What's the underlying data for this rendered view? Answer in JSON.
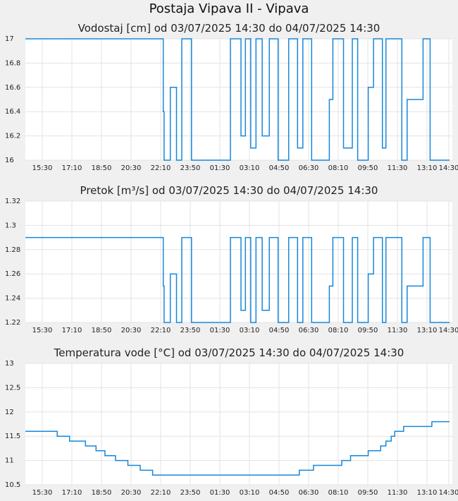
{
  "title": "Postaja Vipava II - Vipava",
  "colors": {
    "line": "#1787d9",
    "plot_background": "#ffffff",
    "page_background": "#f0f0f0",
    "grid": "#e3e3e3"
  },
  "chart_data": [
    {
      "type": "line",
      "title": "Vodostaj [cm] od 03/07/2025 14:30 do 04/07/2025 14:30",
      "xticks": [
        "15:30",
        "17:10",
        "18:50",
        "20:30",
        "22:10",
        "23:50",
        "01:30",
        "03:10",
        "04:50",
        "06:30",
        "08:10",
        "09:50",
        "11:30",
        "13:10",
        "14:30"
      ],
      "yticks": [
        "16",
        "16.2",
        "16.4",
        "16.6",
        "16.8",
        "17"
      ],
      "ylim": [
        16,
        17
      ],
      "grid": true,
      "series": [
        {
          "step": true,
          "x": [
            0,
            7.7,
            7.8,
            7.85,
            8.15,
            8.2,
            8.5,
            8.55,
            8.75,
            8.85,
            9.3,
            9.4,
            11.4,
            11.6,
            12.1,
            12.2,
            12.35,
            12.45,
            12.65,
            12.75,
            12.95,
            13.05,
            13.3,
            13.4,
            13.7,
            13.8,
            14.2,
            14.3,
            14.8,
            14.9,
            15.3,
            15.4,
            15.6,
            15.7,
            16.1,
            16.2,
            17.1,
            17.2,
            17.3,
            17.4,
            17.9,
            18.0,
            18.4,
            18.5,
            18.7,
            18.8,
            19.3,
            19.4,
            19.6,
            19.7,
            20.1,
            20.2,
            20.3,
            20.4,
            21.2,
            21.3,
            21.5,
            21.6,
            22.4,
            22.5,
            22.8,
            22.9,
            24
          ],
          "y": [
            17,
            17,
            16.4,
            16,
            16,
            16.6,
            16.6,
            16,
            16,
            17,
            17,
            16,
            16,
            17,
            17,
            16.2,
            16.2,
            17,
            17,
            16.1,
            16.1,
            17,
            17,
            16.2,
            16.2,
            17,
            17,
            16,
            16,
            17,
            17,
            16.1,
            16.1,
            17,
            17,
            16,
            16,
            16.5,
            16.5,
            17,
            17,
            16.1,
            16.1,
            17,
            17,
            16,
            16,
            16.6,
            16.6,
            17,
            17,
            16.1,
            16.1,
            17,
            17,
            16,
            16,
            16.5,
            16.5,
            17,
            17,
            16,
            16
          ]
        }
      ]
    },
    {
      "type": "line",
      "title": "Pretok [m³/s] od 03/07/2025 14:30 do 04/07/2025 14:30",
      "xticks": [
        "15:30",
        "17:10",
        "18:50",
        "20:30",
        "22:10",
        "23:50",
        "01:30",
        "03:10",
        "04:50",
        "06:30",
        "08:10",
        "09:50",
        "11:30",
        "13:10",
        "14:30"
      ],
      "yticks": [
        "1.22",
        "1.24",
        "1.26",
        "1.28",
        "1.3",
        "1.32"
      ],
      "ylim": [
        1.22,
        1.32
      ],
      "grid": true,
      "series": [
        {
          "step": true,
          "x": [
            0,
            7.7,
            7.8,
            7.85,
            8.15,
            8.2,
            8.5,
            8.55,
            8.75,
            8.85,
            9.3,
            9.4,
            11.4,
            11.6,
            12.1,
            12.2,
            12.35,
            12.45,
            12.65,
            12.75,
            12.95,
            13.05,
            13.3,
            13.4,
            13.7,
            13.8,
            14.2,
            14.3,
            14.8,
            14.9,
            15.3,
            15.4,
            15.6,
            15.7,
            16.1,
            16.2,
            17.1,
            17.2,
            17.3,
            17.4,
            17.9,
            18.0,
            18.4,
            18.5,
            18.7,
            18.8,
            19.3,
            19.4,
            19.6,
            19.7,
            20.1,
            20.2,
            20.3,
            20.4,
            21.2,
            21.3,
            21.5,
            21.6,
            22.4,
            22.5,
            22.8,
            22.9,
            24
          ],
          "y": [
            1.29,
            1.29,
            1.25,
            1.22,
            1.22,
            1.26,
            1.26,
            1.22,
            1.22,
            1.29,
            1.29,
            1.22,
            1.22,
            1.29,
            1.29,
            1.23,
            1.23,
            1.29,
            1.29,
            1.22,
            1.22,
            1.29,
            1.29,
            1.23,
            1.23,
            1.29,
            1.29,
            1.22,
            1.22,
            1.29,
            1.29,
            1.22,
            1.22,
            1.29,
            1.29,
            1.22,
            1.22,
            1.25,
            1.25,
            1.29,
            1.29,
            1.22,
            1.22,
            1.29,
            1.29,
            1.22,
            1.22,
            1.26,
            1.26,
            1.29,
            1.29,
            1.22,
            1.22,
            1.29,
            1.29,
            1.22,
            1.22,
            1.25,
            1.25,
            1.29,
            1.29,
            1.22,
            1.22
          ]
        }
      ]
    },
    {
      "type": "line",
      "title": "Temperatura vode [°C] od 03/07/2025 14:30 do 04/07/2025 14:30",
      "xticks": [
        "15:30",
        "17:10",
        "18:50",
        "20:30",
        "22:10",
        "23:50",
        "01:30",
        "03:10",
        "04:50",
        "06:30",
        "08:10",
        "09:50",
        "11:30",
        "13:10",
        "14:30"
      ],
      "yticks": [
        "10.5",
        "11",
        "11.5",
        "12",
        "12.5",
        "13"
      ],
      "ylim": [
        10.5,
        13
      ],
      "grid": true,
      "series": [
        {
          "step": true,
          "x": [
            0,
            1.5,
            1.8,
            2.3,
            2.5,
            3.4,
            3.6,
            4.0,
            4.2,
            4.5,
            4.7,
            5.1,
            5.3,
            5.8,
            6.0,
            6.5,
            6.7,
            7.0,
            7.2,
            8.0,
            9.0,
            12.0,
            15.2,
            15.5,
            15.9,
            16.3,
            16.6,
            17.4,
            17.9,
            18.4,
            18.9,
            19.4,
            19.7,
            20.1,
            20.4,
            20.7,
            20.9,
            21.2,
            21.4,
            21.7,
            22.0,
            22.6,
            23.0,
            23.5,
            23.7,
            24
          ],
          "y": [
            11.6,
            11.6,
            11.5,
            11.5,
            11.4,
            11.3,
            11.3,
            11.2,
            11.2,
            11.1,
            11.1,
            11.0,
            11.0,
            10.9,
            10.9,
            10.8,
            10.8,
            10.8,
            10.7,
            10.7,
            10.7,
            10.7,
            10.7,
            10.8,
            10.8,
            10.9,
            10.9,
            10.9,
            11.0,
            11.1,
            11.1,
            11.2,
            11.2,
            11.3,
            11.4,
            11.5,
            11.6,
            11.6,
            11.7,
            11.7,
            11.7,
            11.7,
            11.8,
            11.8,
            11.8,
            11.8
          ]
        }
      ]
    }
  ]
}
